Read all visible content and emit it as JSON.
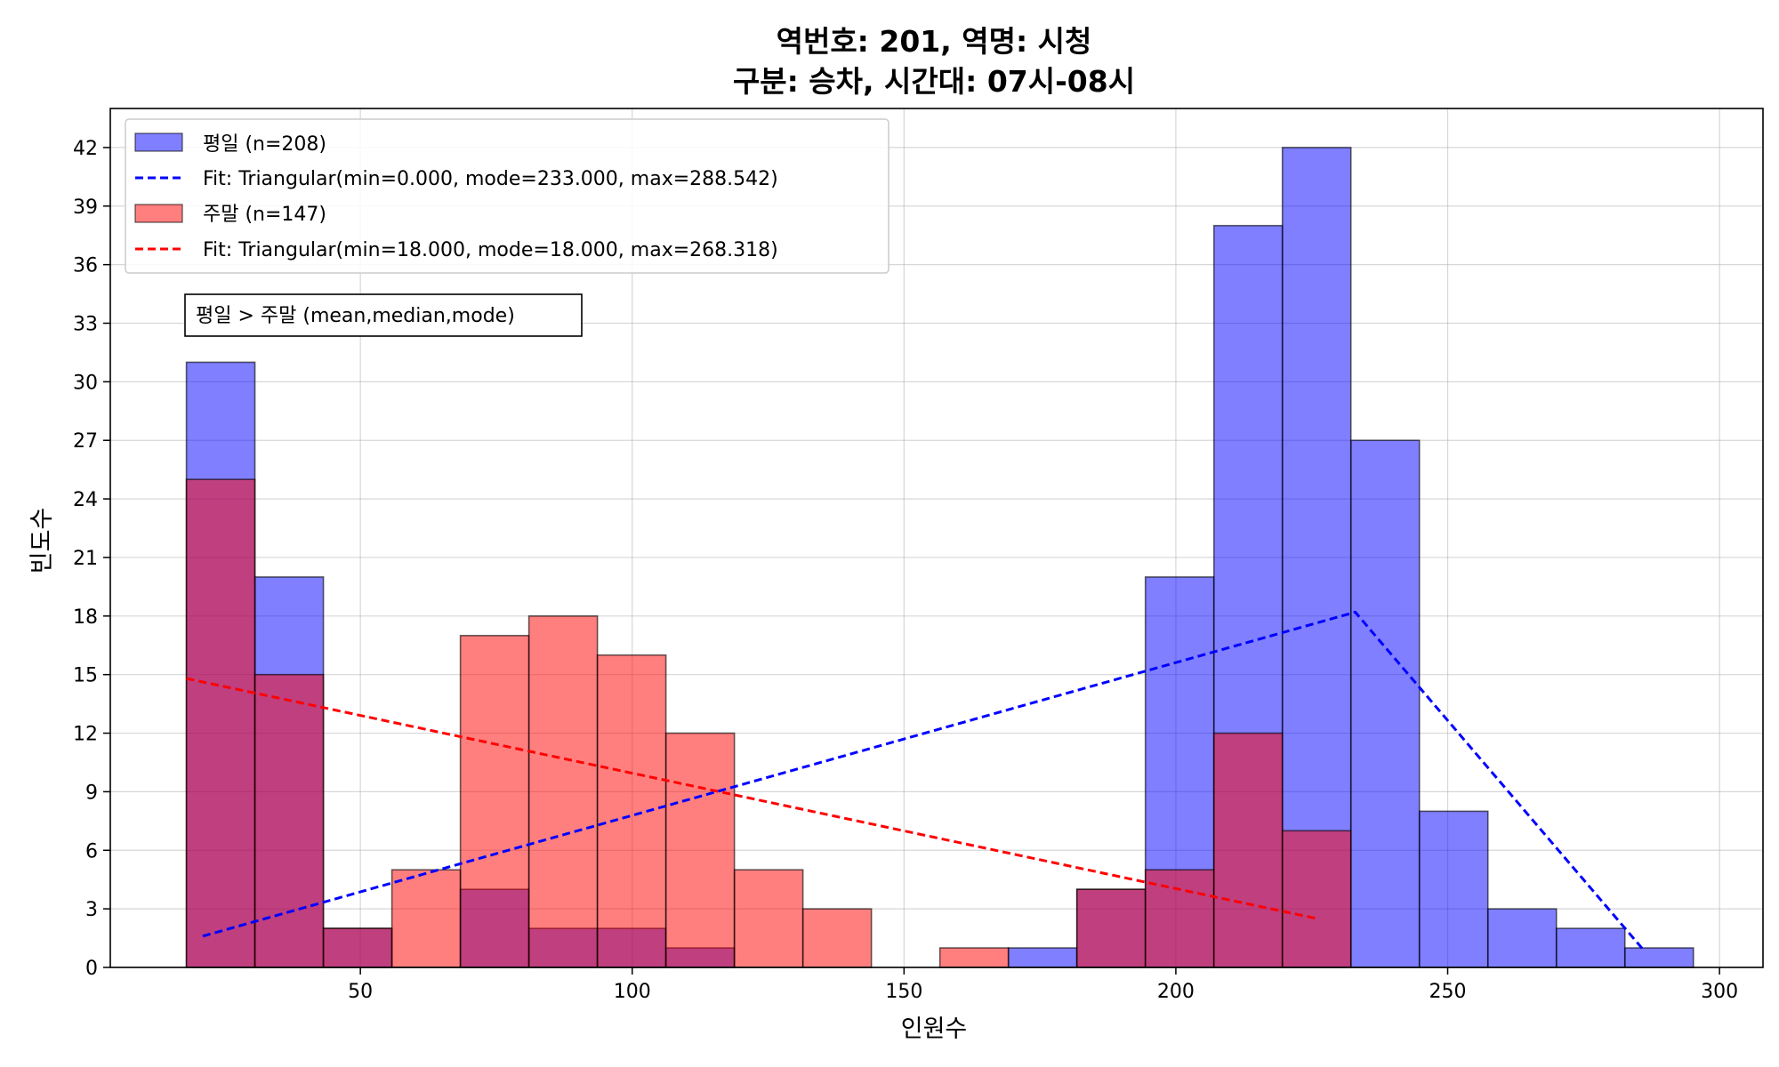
{
  "chart_data": {
    "type": "bar",
    "title_lines": [
      "역번호: 201, 역명: 시청",
      "구분: 승차, 시간대: 07시-08시"
    ],
    "xlabel": "인원수",
    "ylabel": "빈도수",
    "xlim": [
      4,
      308
    ],
    "ylim": [
      0,
      44
    ],
    "xticks": [
      50,
      100,
      150,
      200,
      250,
      300
    ],
    "yticks": [
      0,
      3,
      6,
      9,
      12,
      15,
      18,
      21,
      24,
      27,
      30,
      33,
      36,
      39,
      42
    ],
    "grid": true,
    "legend_placement": "top-left",
    "bin_edges": [
      18,
      30.6,
      43.2,
      55.8,
      68.4,
      81.0,
      93.6,
      106.2,
      118.8,
      131.4,
      144.0,
      156.6,
      169.2,
      181.8,
      194.4,
      207.0,
      219.6,
      232.2,
      244.8,
      257.4,
      270.0,
      282.6,
      295.2
    ],
    "series": [
      {
        "name": "평일 (n=208)",
        "color": "#0000ff",
        "values": [
          31,
          20,
          2,
          0,
          4,
          2,
          2,
          1,
          0,
          0,
          0,
          0,
          1,
          4,
          20,
          38,
          42,
          27,
          8,
          3,
          2,
          1
        ]
      },
      {
        "name": "주말 (n=147)",
        "color": "#ff0000",
        "values": [
          25,
          15,
          2,
          5,
          17,
          18,
          16,
          12,
          5,
          3,
          0,
          1,
          0,
          4,
          5,
          12,
          7,
          0,
          0,
          0,
          0,
          0
        ]
      }
    ],
    "fit_lines": [
      {
        "name": "Fit: Triangular(min=0.000, mode=233.000, max=288.542)",
        "color": "#0000ff",
        "points": [
          [
            21,
            1.6
          ],
          [
            233,
            18.2
          ],
          [
            286,
            0.9
          ]
        ]
      },
      {
        "name": "Fit: Triangular(min=18.000, mode=18.000, max=268.318)",
        "color": "#ff0000",
        "points": [
          [
            18,
            14.8
          ],
          [
            226,
            2.5
          ]
        ]
      }
    ],
    "annotation": "평일 > 주말 (mean,median,mode)"
  }
}
